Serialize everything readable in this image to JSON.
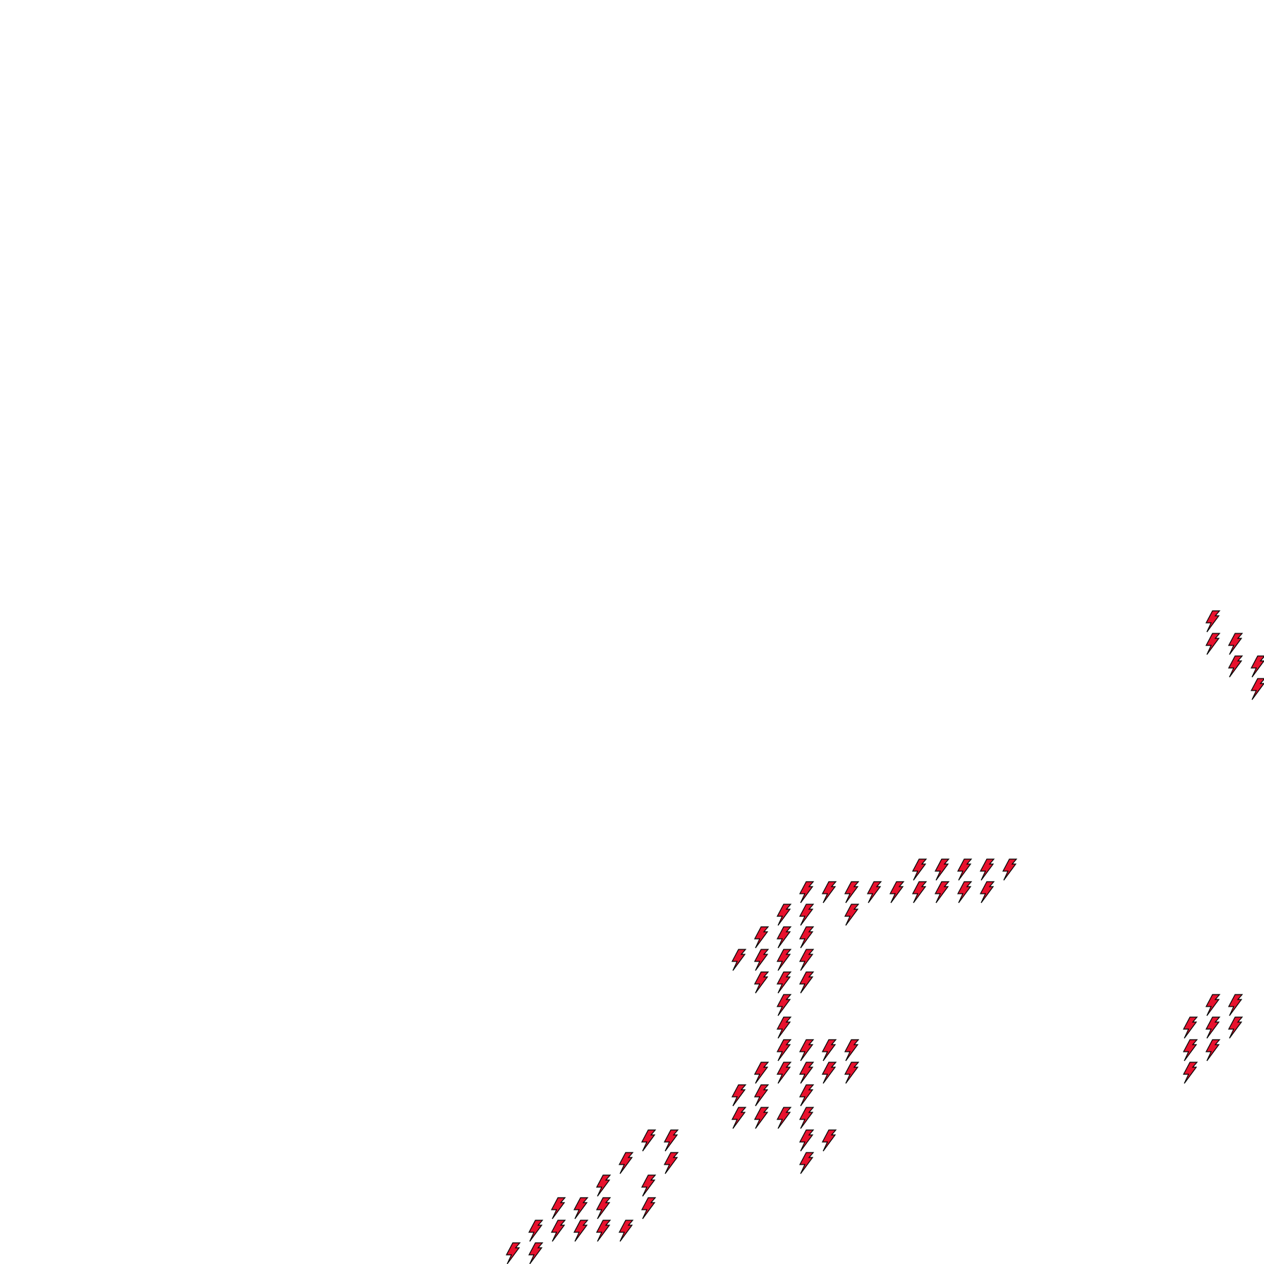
{
  "map": {
    "background": "#ffffff",
    "symbol": {
      "icon": "lightning-bolt-icon",
      "fill": "#e8112d",
      "stroke": "#000000"
    },
    "clusters": [
      {
        "name": "northeast",
        "cells": [
          [
            24,
            -1
          ],
          [
            23,
            -1
          ],
          [
            22,
            -3
          ],
          [
            23,
            -3
          ],
          [
            21,
            -4
          ],
          [
            22,
            -4
          ],
          [
            20,
            -5
          ],
          [
            21,
            -5
          ],
          [
            22,
            -5
          ],
          [
            19,
            -6
          ],
          [
            20,
            -6
          ],
          [
            19,
            -7
          ]
        ]
      },
      {
        "name": "center",
        "cells": [
          [
            6,
            4
          ],
          [
            7,
            4
          ],
          [
            8,
            4
          ],
          [
            9,
            4
          ],
          [
            10,
            4
          ],
          [
            1,
            5
          ],
          [
            2,
            5
          ],
          [
            3,
            5
          ],
          [
            4,
            5
          ],
          [
            5,
            5
          ],
          [
            6,
            5
          ],
          [
            7,
            5
          ],
          [
            8,
            5
          ],
          [
            9,
            5
          ],
          [
            0,
            6
          ],
          [
            1,
            6
          ],
          [
            3,
            6
          ],
          [
            -1,
            7
          ],
          [
            0,
            7
          ],
          [
            1,
            7
          ],
          [
            -2,
            8
          ],
          [
            -1,
            8
          ],
          [
            0,
            8
          ],
          [
            1,
            8
          ],
          [
            -1,
            9
          ],
          [
            0,
            9
          ],
          [
            1,
            9
          ],
          [
            0,
            10
          ],
          [
            0,
            11
          ],
          [
            0,
            12
          ],
          [
            1,
            12
          ],
          [
            2,
            12
          ],
          [
            3,
            12
          ],
          [
            -1,
            13
          ],
          [
            0,
            13
          ],
          [
            1,
            13
          ],
          [
            2,
            13
          ],
          [
            3,
            13
          ],
          [
            -2,
            14
          ],
          [
            -1,
            14
          ],
          [
            1,
            14
          ],
          [
            -2,
            15
          ],
          [
            -1,
            15
          ],
          [
            0,
            15
          ],
          [
            1,
            15
          ],
          [
            1,
            16
          ],
          [
            2,
            16
          ],
          [
            1,
            17
          ]
        ]
      },
      {
        "name": "southwest",
        "cells": [
          [
            -6,
            16
          ],
          [
            -5,
            16
          ],
          [
            -7,
            17
          ],
          [
            -5,
            17
          ],
          [
            -8,
            18
          ],
          [
            -6,
            18
          ],
          [
            -10,
            19
          ],
          [
            -9,
            19
          ],
          [
            -8,
            19
          ],
          [
            -6,
            19
          ],
          [
            -11,
            20
          ],
          [
            -10,
            20
          ],
          [
            -9,
            20
          ],
          [
            -8,
            20
          ],
          [
            -7,
            20
          ],
          [
            -11,
            21
          ],
          [
            -12,
            21
          ]
        ]
      },
      {
        "name": "east",
        "cells": [
          [
            19,
            10
          ],
          [
            20,
            10
          ],
          [
            18,
            11
          ],
          [
            19,
            11
          ],
          [
            20,
            11
          ],
          [
            18,
            12
          ],
          [
            19,
            12
          ],
          [
            18,
            13
          ]
        ]
      }
    ]
  }
}
